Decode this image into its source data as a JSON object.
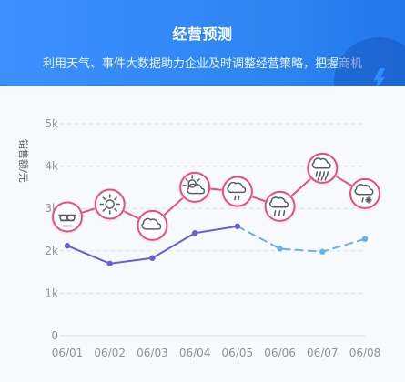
{
  "header": {
    "title": "经营预测",
    "subtitle": "利用天气、事件大数据助力企业及时调整经营策略，把握商机"
  },
  "chart_data": {
    "type": "line",
    "ylabel": "销售额/元",
    "categories": [
      "06/01",
      "06/02",
      "06/03",
      "06/04",
      "06/05",
      "06/06",
      "06/07",
      "06/08"
    ],
    "y_ticks": [
      "0",
      "1k",
      "2k",
      "3k",
      "4k",
      "5k"
    ],
    "ylim": [
      0,
      5000
    ],
    "grid": true,
    "series": [
      {
        "values": [
          2800,
          3100,
          2600,
          3500,
          3400,
          3050,
          3950,
          3350
        ],
        "color": "#e94d7c",
        "style": "solid",
        "markers": [
          "fog-icon",
          "sunny-icon",
          "cloudy-icon",
          "partly-cloudy-icon",
          "drizzle-icon",
          "rain-icon",
          "heavy-rain-icon",
          "sleet-icon"
        ]
      },
      {
        "values": [
          2120,
          1700,
          1830,
          2420,
          2580,
          2050,
          1980,
          2280
        ],
        "color_actual": "#6a5ed8",
        "color_forecast": "#64b4ea",
        "forecast_from_index": 4
      }
    ]
  },
  "colors": {
    "header_gradient_start": "#3c8fff",
    "header_gradient_end": "#2278eb",
    "chart_background": "#f8f9fc",
    "grid": "#d9dde5",
    "axis_text": "#8d939d",
    "marker_fill": "#ffffff"
  }
}
